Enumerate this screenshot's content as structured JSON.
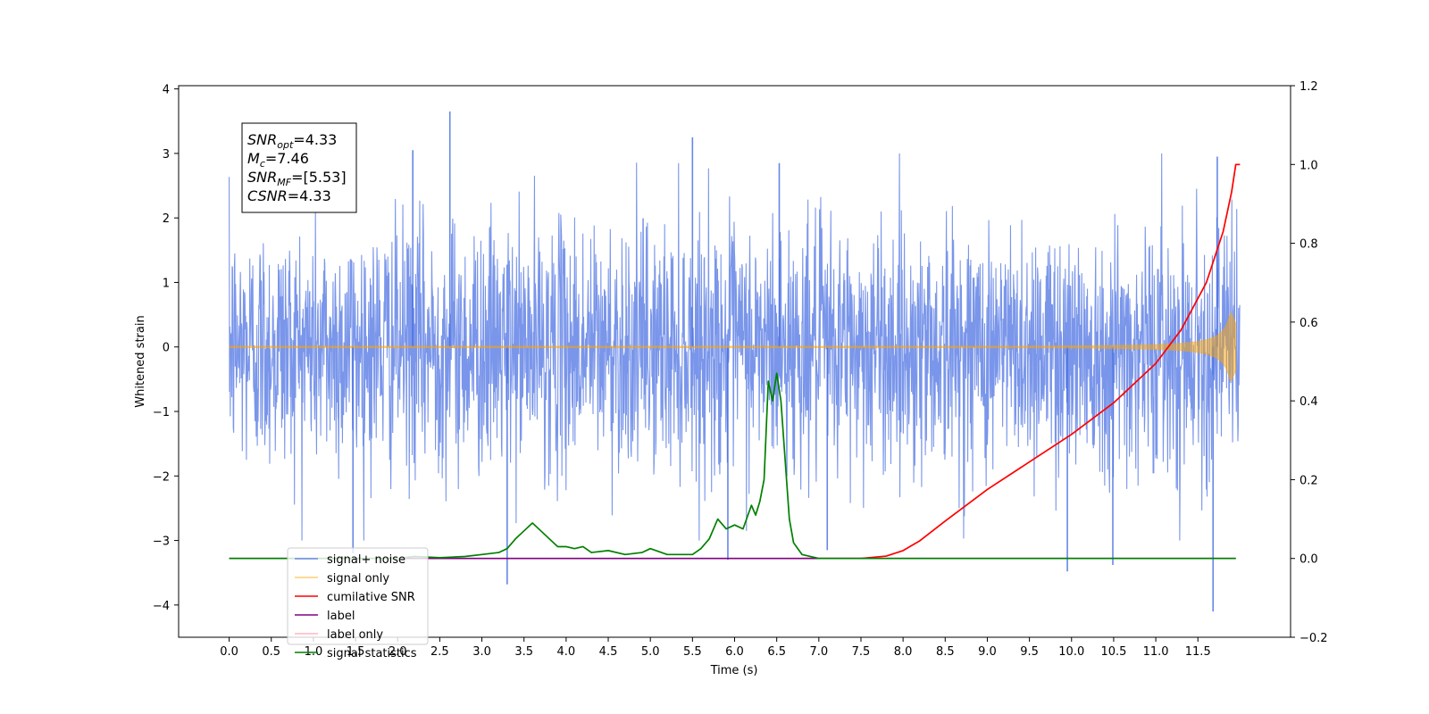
{
  "chart_data": {
    "type": "line",
    "title": "",
    "xlabel": "Time (s)",
    "ylabel": "Whitened strain",
    "y2label": "",
    "xlim": [
      -0.6,
      12.6
    ],
    "ylim": [
      -4.5,
      4.05
    ],
    "y2lim": [
      -0.2,
      1.2
    ],
    "x_ticks": [
      0.0,
      0.5,
      1.0,
      1.5,
      2.0,
      2.5,
      3.0,
      3.5,
      4.0,
      4.5,
      5.0,
      5.5,
      6.0,
      6.5,
      7.0,
      7.5,
      8.0,
      8.5,
      9.0,
      9.5,
      10.0,
      10.5,
      11.0,
      11.5
    ],
    "x_tick_labels": [
      "0.0",
      "0.5",
      "1.0",
      "1.5",
      "2.0",
      "2.5",
      "3.0",
      "3.5",
      "4.0",
      "4.5",
      "5.0",
      "5.5",
      "6.0",
      "6.5",
      "7.0",
      "7.5",
      "8.0",
      "8.5",
      "9.0",
      "9.5",
      "10.0",
      "10.5",
      "11.0",
      "11.5"
    ],
    "y_ticks": [
      -4,
      -3,
      -2,
      -1,
      0,
      1,
      2,
      3,
      4
    ],
    "y_tick_labels": [
      "−4",
      "−3",
      "−2",
      "−1",
      "0",
      "1",
      "2",
      "3",
      "4"
    ],
    "y2_ticks": [
      -0.2,
      0.0,
      0.2,
      0.4,
      0.6,
      0.8,
      1.0,
      1.2
    ],
    "y2_tick_labels": [
      "−0.2",
      "0.0",
      "0.2",
      "0.4",
      "0.6",
      "0.8",
      "1.0",
      "1.2"
    ],
    "grid": false,
    "legend_position": "lower-left",
    "annotation": {
      "lines": [
        {
          "sym": "SNR",
          "sub": "opt",
          "rest": "=4.33"
        },
        {
          "sym": "M",
          "sub": "c",
          "rest": "=7.46"
        },
        {
          "sym": "SNR",
          "sub": "MF",
          "rest": "=[5.53]"
        },
        {
          "sym": "CSNR",
          "sub": "",
          "rest": "=4.33"
        }
      ]
    },
    "series": [
      {
        "name": "signal+ noise",
        "axis": "left",
        "color": "#4169e1",
        "style": "noise",
        "t_range": [
          0.0,
          12.0
        ],
        "std": 0.95,
        "spikes": [
          {
            "x": 2.62,
            "y": 3.65
          },
          {
            "x": 1.47,
            "y": -3.2
          },
          {
            "x": 3.3,
            "y": -3.68
          },
          {
            "x": 5.5,
            "y": 3.25
          },
          {
            "x": 6.53,
            "y": 2.85
          },
          {
            "x": 9.95,
            "y": -3.48
          },
          {
            "x": 10.49,
            "y": -3.38
          },
          {
            "x": 11.68,
            "y": -4.1
          },
          {
            "x": 11.73,
            "y": 2.95
          },
          {
            "x": 2.18,
            "y": 3.05
          },
          {
            "x": 5.92,
            "y": -3.3
          },
          {
            "x": 7.1,
            "y": -3.15
          }
        ]
      },
      {
        "name": "signal only",
        "axis": "left",
        "color": "#ffa500",
        "style": "chirp",
        "t_range": [
          0.0,
          11.95
        ],
        "t_coalesce": 11.98,
        "peak_amplitude": 0.52
      },
      {
        "name": "cumilative SNR",
        "axis": "right",
        "color": "#ff0000",
        "x": [
          6.8,
          7.0,
          7.5,
          7.8,
          8.0,
          8.2,
          8.5,
          9.0,
          9.5,
          10.0,
          10.5,
          11.0,
          11.3,
          11.6,
          11.8,
          11.9,
          11.95,
          12.0
        ],
        "values": [
          0.0,
          0.0,
          0.0,
          0.006,
          0.02,
          0.045,
          0.095,
          0.175,
          0.245,
          0.315,
          0.395,
          0.495,
          0.58,
          0.7,
          0.83,
          0.93,
          1.0,
          1.0
        ]
      },
      {
        "name": "label",
        "axis": "right",
        "color": "#800080",
        "x": [
          0.0,
          11.95
        ],
        "values": [
          0.0,
          0.0
        ]
      },
      {
        "name": "label only",
        "axis": "right",
        "color": "#ffb6c1",
        "hidden_line": true,
        "x": [],
        "values": []
      },
      {
        "name": "signal statistics",
        "axis": "right",
        "color": "#008000",
        "x": [
          0.0,
          1.0,
          2.0,
          2.2,
          2.5,
          2.8,
          3.0,
          3.2,
          3.3,
          3.4,
          3.5,
          3.6,
          3.7,
          3.9,
          4.0,
          4.1,
          4.2,
          4.3,
          4.5,
          4.7,
          4.9,
          5.0,
          5.2,
          5.5,
          5.6,
          5.7,
          5.8,
          5.9,
          6.0,
          6.1,
          6.2,
          6.25,
          6.3,
          6.35,
          6.4,
          6.45,
          6.5,
          6.55,
          6.6,
          6.65,
          6.7,
          6.8,
          7.0,
          8.0,
          10.0,
          11.95
        ],
        "values": [
          0.0,
          0.0,
          0.0,
          0.005,
          0.002,
          0.005,
          0.01,
          0.015,
          0.025,
          0.05,
          0.07,
          0.09,
          0.07,
          0.03,
          0.03,
          0.025,
          0.03,
          0.015,
          0.02,
          0.01,
          0.015,
          0.025,
          0.01,
          0.01,
          0.025,
          0.05,
          0.1,
          0.075,
          0.085,
          0.075,
          0.135,
          0.11,
          0.145,
          0.2,
          0.45,
          0.4,
          0.47,
          0.4,
          0.25,
          0.1,
          0.04,
          0.01,
          0.0,
          0.0,
          0.0,
          0.0
        ]
      }
    ]
  }
}
